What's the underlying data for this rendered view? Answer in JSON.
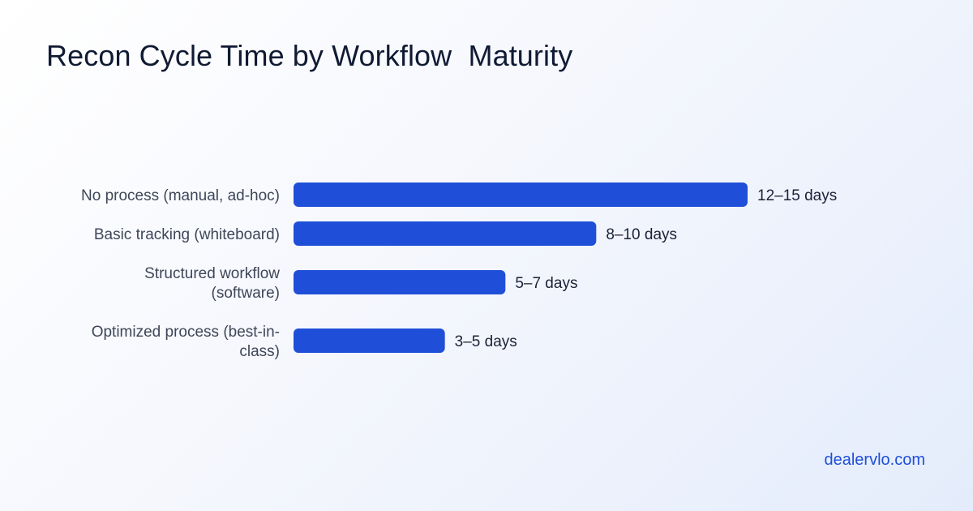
{
  "page": {
    "title": "Recon Cycle Time by Workflow  Maturity",
    "brand": "dealervlo.com"
  },
  "colors": {
    "bar": "#1f4fd8",
    "title": "#101a33",
    "brand": "#1f4fd8"
  },
  "chart_data": {
    "type": "bar",
    "orientation": "horizontal",
    "title": "Recon Cycle Time by Workflow  Maturity",
    "categories": [
      "No process (manual, ad-hoc)",
      "Basic tracking (whiteboard)",
      "Structured workflow (software)",
      "Optimized process (best-in-class)"
    ],
    "category_label_lines": [
      [
        "No process (manual, ad-hoc)"
      ],
      [
        "Basic tracking (whiteboard)"
      ],
      [
        "Structured workflow",
        "(software)"
      ],
      [
        "Optimized process (best-in-",
        "class)"
      ]
    ],
    "values": [
      15,
      10,
      7,
      5
    ],
    "data_labels": [
      "12–15 days",
      "8–10 days",
      "5–7 days",
      "3–5 days"
    ],
    "xlabel": "",
    "ylabel": "",
    "grid": false,
    "legend": "none"
  }
}
